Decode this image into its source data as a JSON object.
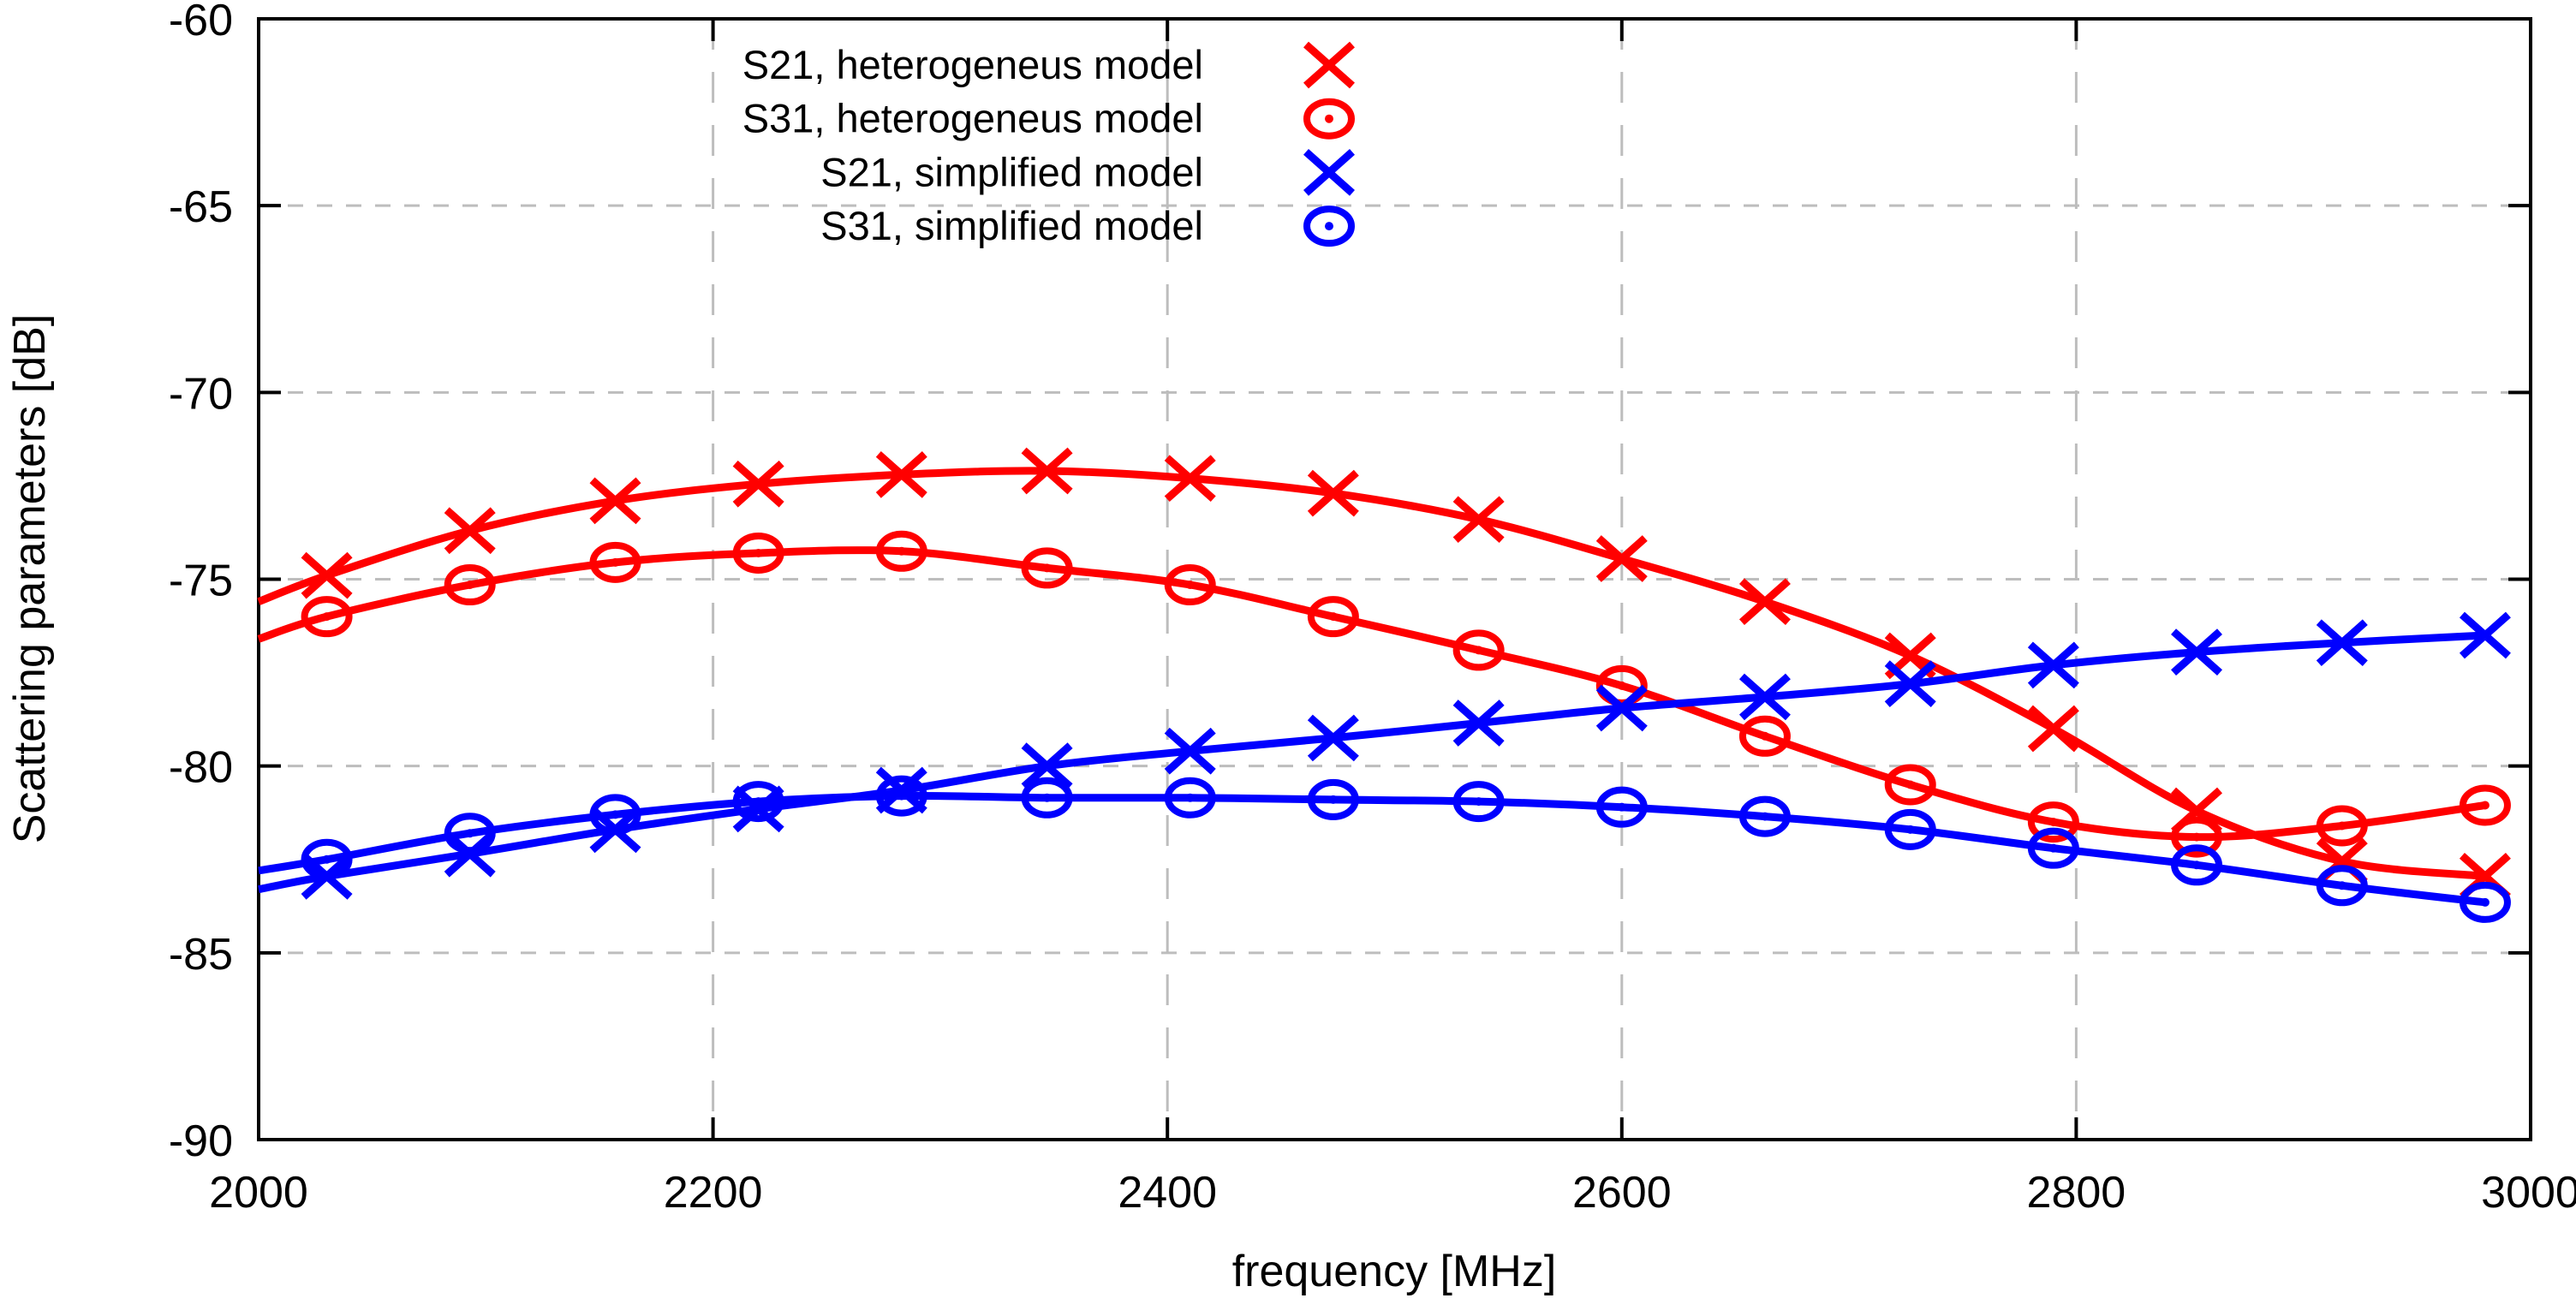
{
  "chart_data": {
    "type": "line",
    "title": "",
    "xlabel": "frequency [MHz]",
    "ylabel": "Scattering parameters [dB]",
    "xlim": [
      2000,
      3000
    ],
    "ylim": [
      -90,
      -60
    ],
    "xticks": [
      2000,
      2200,
      2400,
      2600,
      2800,
      3000
    ],
    "yticks": [
      -90,
      -85,
      -80,
      -75,
      -70,
      -65,
      -60
    ],
    "grid": true,
    "legend_position": "top-center-inside",
    "marker_start_index": 1,
    "x": [
      2000,
      2030,
      2093,
      2157,
      2220,
      2283,
      2347,
      2410,
      2473,
      2537,
      2600,
      2663,
      2727,
      2790,
      2853,
      2917,
      2980
    ],
    "series": [
      {
        "name": "S21, heterogeneus model",
        "color": "#ff0000",
        "marker": "x",
        "y": [
          -75.6,
          -74.9,
          -73.7,
          -72.9,
          -72.45,
          -72.2,
          -72.1,
          -72.3,
          -72.7,
          -73.4,
          -74.45,
          -75.6,
          -77.05,
          -79.0,
          -81.2,
          -82.55,
          -82.95
        ]
      },
      {
        "name": "S31, heterogeneus model",
        "color": "#ff0000",
        "marker": "o",
        "y": [
          -76.6,
          -76.0,
          -75.15,
          -74.55,
          -74.3,
          -74.25,
          -74.7,
          -75.15,
          -76.0,
          -76.9,
          -77.85,
          -79.2,
          -80.5,
          -81.5,
          -81.9,
          -81.6,
          -81.05
        ]
      },
      {
        "name": "S21, simplified model",
        "color": "#0000ff",
        "marker": "x",
        "y": [
          -83.3,
          -82.95,
          -82.35,
          -81.7,
          -81.15,
          -80.65,
          -80.0,
          -79.6,
          -79.25,
          -78.85,
          -78.45,
          -78.15,
          -77.8,
          -77.3,
          -76.95,
          -76.7,
          -76.5
        ]
      },
      {
        "name": "S31, simplified model",
        "color": "#0000ff",
        "marker": "o",
        "y": [
          -82.8,
          -82.5,
          -81.8,
          -81.3,
          -80.95,
          -80.8,
          -80.85,
          -80.85,
          -80.9,
          -80.95,
          -81.1,
          -81.35,
          -81.7,
          -82.2,
          -82.65,
          -83.2,
          -83.65
        ]
      }
    ],
    "grid_color": "#bdbdbd",
    "border_color": "#000000"
  }
}
